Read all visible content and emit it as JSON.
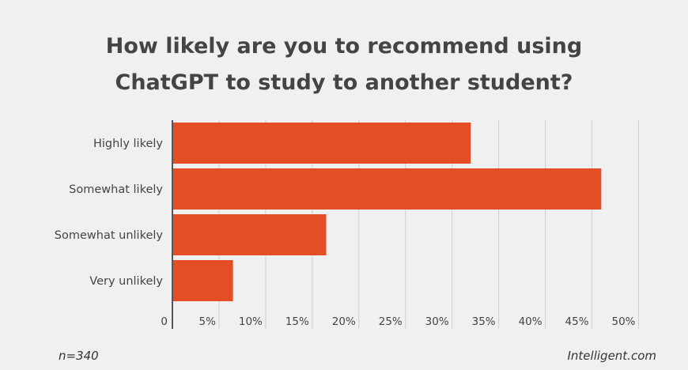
{
  "title_lines": [
    "How likely are you to recommend using",
    "ChatGPT to study to another student?"
  ],
  "footer": {
    "sample": "n=340",
    "source": "Intelligent.com"
  },
  "colors": {
    "bar": "#e34e26",
    "grid": "#d0d0d0",
    "axis": "#555555",
    "text": "#444444",
    "background": "#f1f0f0"
  },
  "chart_data": {
    "type": "bar",
    "orientation": "horizontal",
    "categories": [
      "Highly likely",
      "Somewhat likely",
      "Somewhat unlikely",
      "Very unlikely"
    ],
    "values": [
      32,
      46,
      16.5,
      6.5
    ],
    "xlim": [
      0,
      50
    ],
    "xticks": [
      0,
      5,
      10,
      15,
      20,
      25,
      30,
      35,
      40,
      45,
      50
    ],
    "xtick_labels": [
      "0",
      "5%",
      "10%",
      "15%",
      "20%",
      "25%",
      "30%",
      "35%",
      "40%",
      "45%",
      "50%"
    ],
    "grid": true
  }
}
